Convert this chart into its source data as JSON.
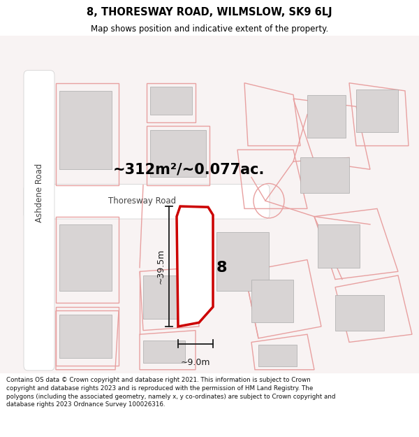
{
  "title": "8, THORESWAY ROAD, WILMSLOW, SK9 6LJ",
  "subtitle": "Map shows position and indicative extent of the property.",
  "area_text": "~312m²/~0.077ac.",
  "property_number": "8",
  "dim_height": "~39.5m",
  "dim_width": "~9.0m",
  "road_label": "Thoresway Road",
  "road_label2": "Ashdene Road",
  "footer": "Contains OS data © Crown copyright and database right 2021. This information is subject to Crown copyright and database rights 2023 and is reproduced with the permission of HM Land Registry. The polygons (including the associated geometry, namely x, y co-ordinates) are subject to Crown copyright and database rights 2023 Ordnance Survey 100026316.",
  "bg_color": "#f5f0f0",
  "map_bg": "#f7f2f2",
  "road_color": "#ffffff",
  "building_fill": "#d8d4d4",
  "plot_fill": "#ffffff",
  "plot_stroke": "#cc0000",
  "dim_color": "#1a1a1a",
  "pink_line": "#e8a0a0",
  "footer_bg": "#ffffff"
}
